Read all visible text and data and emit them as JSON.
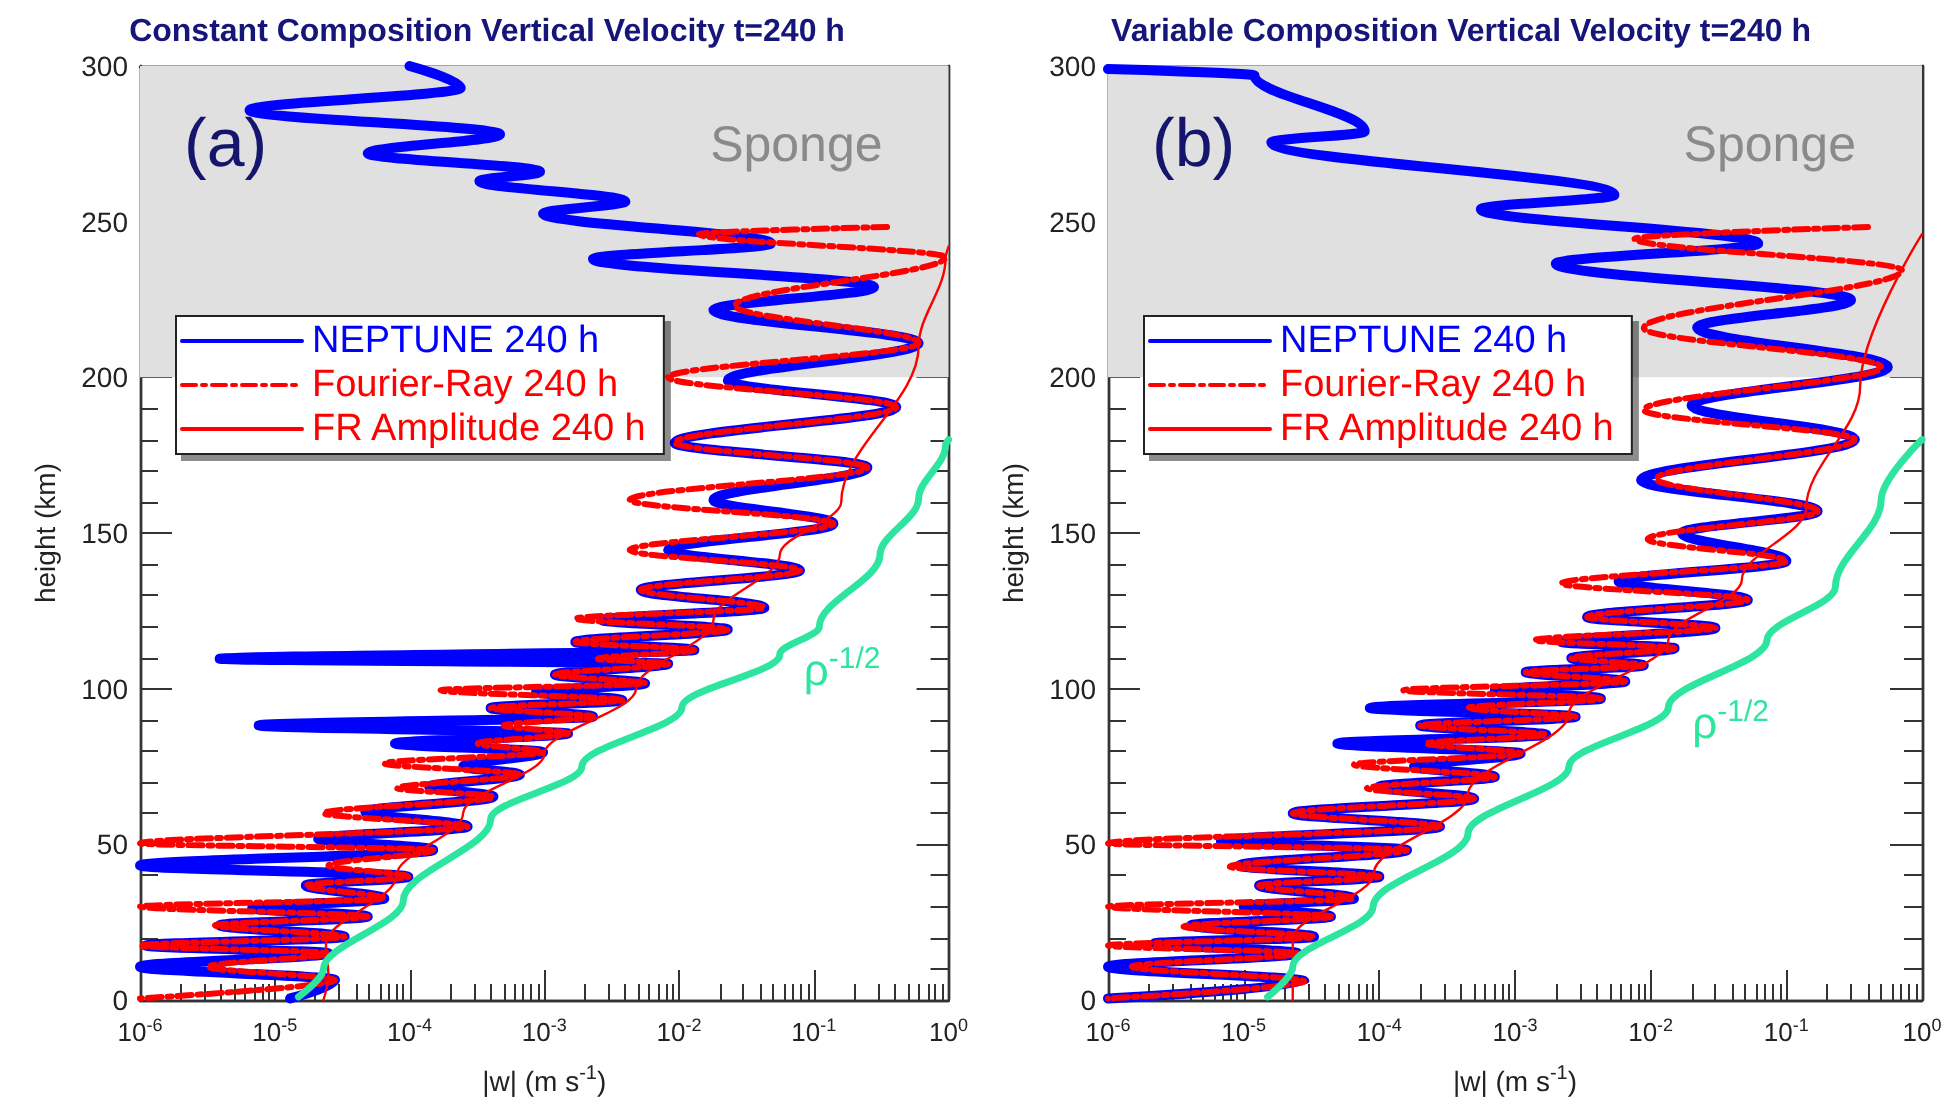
{
  "chart_data": [
    {
      "type": "line",
      "title": "Constant Composition Vertical Velocity t=240 h",
      "xlabel": "|w| (m s$^{-1}$)",
      "ylabel": "height (km)",
      "log": "x",
      "grid": false,
      "marker": "none",
      "legend": "left",
      "xlim": [
        1e-06,
        1
      ],
      "xticks": [
        {
          "value": 1e-06,
          "label": "10$^{-6}$"
        },
        {
          "value": 1e-05,
          "label": "10$^{-5}$"
        },
        {
          "value": 0.0001,
          "label": "10$^{-4}$"
        },
        {
          "value": 0.001,
          "label": "10$^{-3}$"
        },
        {
          "value": 0.01,
          "label": "10$^{-2}$"
        },
        {
          "value": 0.1,
          "label": "10$^{-1}$"
        },
        {
          "value": 1,
          "label": "10$^{0}$"
        }
      ],
      "ylim": [
        0,
        300
      ],
      "yticks": [
        0,
        50,
        100,
        150,
        200,
        250,
        300
      ],
      "bands": [
        {
          "axis": "y",
          "from": 200,
          "to": 300,
          "label": "Sponge",
          "color": "#e0e0e0"
        }
      ],
      "annotations": [
        "(a)",
        "ρ$^{-1/2}$"
      ],
      "series": [
        {
          "name": "NEPTUNE 240 h",
          "color": "#0000ff",
          "x": [
            0.0001,
            0.00024,
            6.5e-06,
            0.00047,
            4.9e-05,
            0.00093,
            0.00033,
            0.004,
            0.00098,
            0.048,
            0.0023,
            0.28,
            0.018,
            0.6,
            0.023,
            0.41,
            0.0093,
            0.25,
            0.018,
            0.14,
            0.0083,
            0.079,
            0.0052,
            0.043,
            0.0027,
            0.023,
            0.0017,
            0.013,
            3.9e-06,
            0.0083,
            0.0012,
            0.0056,
            0.00087,
            0.0038,
            0.0004,
            0.0023,
            7.6e-06,
            0.0015,
            7.8e-05,
            0.00098,
            0.00025,
            0.00066,
            0.00014,
            0.00042,
            4.7e-05,
            0.00027,
            2.1e-05,
            0.00015,
            1e-06,
            9.8e-05,
            1.7e-05,
            6.5e-05,
            6.8e-06,
            4.9e-05,
            3.9e-06,
            3.3e-05,
            1.1e-06,
            2.5e-05,
            1e-06,
            2.8e-05,
            1.3e-05
          ],
          "values": [
            300,
            293,
            285.8,
            278,
            272,
            266,
            263,
            256.5,
            252.6,
            243,
            238,
            229,
            221.6,
            211,
            199,
            190.5,
            179,
            171,
            160.6,
            153,
            144.5,
            138,
            131.7,
            126,
            122,
            119,
            115,
            112.4,
            109.6,
            108,
            104.5,
            101.7,
            99,
            96.3,
            93.8,
            91,
            88.2,
            85.6,
            82.4,
            79.6,
            75,
            72.4,
            68.5,
            65.3,
            60.4,
            55.7,
            51.8,
            48.2,
            43.2,
            39.6,
            36.8,
            32.6,
            29.5,
            26.8,
            24,
            20.3,
            17.5,
            15,
            10.7,
            6.4,
            0.5
          ]
        },
        {
          "name": "Fourier-Ray 240 h",
          "color": "#ff0000",
          "line_style": "dashed",
          "x": [
            0.35,
            0.014,
            0.95,
            0.026,
            0.6,
            0.0083,
            0.41,
            0.0093,
            0.25,
            0.0043,
            0.14,
            0.0043,
            0.079,
            0.0052,
            0.043,
            0.0017,
            0.023,
            0.0017,
            0.013,
            0.0025,
            0.0083,
            0.0012,
            0.0056,
            0.00017,
            0.0038,
            0.0004,
            0.0023,
            0.0005,
            0.0015,
            0.00032,
            0.00098,
            6.5e-05,
            0.00066,
            8.1e-05,
            0.00042,
            2.3e-05,
            0.00027,
            1e-06,
            0.00015,
            2.5e-05,
            9.8e-05,
            1.7e-05,
            6.5e-05,
            1e-06,
            4.9e-05,
            3.6e-06,
            3.3e-05,
            1e-06,
            2.5e-05,
            3.2e-06,
            2.8e-05,
            1e-06
          ],
          "values": [
            248.3,
            246,
            238.6,
            223,
            211,
            200,
            190.5,
            179,
            171,
            160.6,
            153,
            144.5,
            138,
            131.7,
            126,
            122.5,
            119,
            115,
            112.4,
            109.6,
            108,
            104.5,
            101.7,
            99.5,
            96.3,
            93.8,
            91,
            88.2,
            85.6,
            82.4,
            79.6,
            76,
            72.4,
            68,
            65.3,
            60,
            55.7,
            50.3,
            48.2,
            43.2,
            39.6,
            36.8,
            32.6,
            30,
            26.8,
            24,
            20.3,
            17.5,
            15,
            10.7,
            6.4,
            0.5
          ]
        },
        {
          "name": "FR Amplitude 240 h",
          "color": "#ff0000",
          "x": [
            2.3e-05,
            2.5e-05,
            2.4e-05,
            8e-05,
            0.00025,
            0.001,
            0.0048,
            0.018,
            0.056,
            0.16,
            0.6,
            0.95,
            1.0
          ],
          "values": [
            0,
            8,
            18,
            40,
            60,
            79,
            100,
            122,
            143,
            160,
            210,
            238,
            242
          ]
        },
        {
          "color": "#2ee5a0",
          "x": [
            1.5e-05,
            2.3e-05,
            9e-05,
            0.0004,
            0.0019,
            0.0105,
            0.056,
            0.11,
            0.31,
            0.6,
            0.95,
            1.0
          ],
          "values": [
            1,
            10,
            32,
            58,
            75,
            94,
            111,
            120,
            143,
            161,
            178,
            180
          ]
        }
      ]
    },
    {
      "type": "line",
      "title": "Variable Composition Vertical Velocity t=240 h",
      "xlabel": "|w| (m s$^{-1}$)",
      "ylabel": "height (km)",
      "log": "x",
      "grid": false,
      "marker": "none",
      "legend": "left",
      "xlim": [
        1e-06,
        1
      ],
      "xticks": [
        {
          "value": 1e-06,
          "label": "10$^{-6}$"
        },
        {
          "value": 1e-05,
          "label": "10$^{-5}$"
        },
        {
          "value": 0.0001,
          "label": "10$^{-4}$"
        },
        {
          "value": 0.001,
          "label": "10$^{-3}$"
        },
        {
          "value": 0.01,
          "label": "10$^{-2}$"
        },
        {
          "value": 0.1,
          "label": "10$^{-1}$"
        },
        {
          "value": 1,
          "label": "10$^{0}$"
        }
      ],
      "ylim": [
        0,
        300
      ],
      "yticks": [
        0,
        50,
        100,
        150,
        200,
        250,
        300
      ],
      "bands": [
        {
          "axis": "y",
          "from": 200,
          "to": 300,
          "label": "Sponge",
          "color": "#e0e0e0"
        }
      ],
      "annotations": [
        "(b)",
        "ρ$^{-1/2}$"
      ],
      "series": [
        {
          "name": "NEPTUNE 240 h",
          "color": "#0000ff",
          "x": [
            1e-06,
            1.2e-05,
            7.8e-05,
            1.6e-05,
            0.0054,
            0.00056,
            0.062,
            0.002,
            0.3,
            0.022,
            0.56,
            0.02,
            0.32,
            0.0085,
            0.17,
            0.017,
            0.1,
            0.0058,
            0.052,
            0.0034,
            0.03,
            0.0022,
            0.015,
            0.0026,
            0.0089,
            0.0012,
            0.0065,
            0.00071,
            0.0043,
            8.5e-05,
            0.0028,
            0.0002,
            0.0017,
            4.9e-05,
            0.0011,
            0.00018,
            0.00071,
            0.0001,
            0.0005,
            2.3e-05,
            0.00028,
            6.8e-06,
            0.00016,
            9.3e-06,
            0.0001,
            1.3e-05,
            6.5e-05,
            1e-05,
            4.4e-05,
            4.1e-06,
            3.3e-05,
            2.2e-06,
            2.5e-05,
            1e-06,
            2.8e-05,
            1e-06
          ],
          "values": [
            299,
            297,
            279,
            275.5,
            258.6,
            254,
            243,
            236.5,
            224.8,
            216,
            203.3,
            191,
            180,
            167,
            157,
            150,
            141,
            134.4,
            128.5,
            123,
            119.5,
            115,
            113,
            109.8,
            107.5,
            105.3,
            102.3,
            99.5,
            96.8,
            93.8,
            91,
            88.2,
            85.2,
            82.4,
            79.2,
            75,
            71.7,
            68.5,
            64.7,
            60,
            55.7,
            51,
            48.2,
            43.2,
            39.6,
            36.8,
            32.6,
            30,
            26.8,
            24,
            20.3,
            18.2,
            15,
            10.7,
            6,
            0.5
          ]
        },
        {
          "name": "Fourier-Ray 240 h",
          "color": "#ff0000",
          "line_style": "dashed",
          "x": [
            0.4,
            0.0076,
            0.71,
            0.0089,
            0.5,
            0.0089,
            0.32,
            0.011,
            0.17,
            0.0095,
            0.1,
            0.0022,
            0.052,
            0.0034,
            0.03,
            0.0014,
            0.015,
            0.0026,
            0.0089,
            0.0012,
            0.0065,
            0.00015,
            0.0043,
            0.00045,
            0.0028,
            0.0002,
            0.0017,
            0.00022,
            0.0011,
            6.5e-05,
            0.00071,
            8.1e-05,
            0.0005,
            2.3e-05,
            0.00028,
            1e-06,
            0.00016,
            7.9e-06,
            0.0001,
            1.3e-05,
            6.5e-05,
            1e-06,
            4.4e-05,
            3.6e-06,
            3.3e-05,
            1e-06,
            2.5e-05,
            1.5e-06,
            2.8e-05,
            1e-06
          ],
          "values": [
            248.3,
            244.5,
            234.4,
            215.8,
            203.3,
            189.5,
            180,
            167.4,
            157,
            148,
            141,
            133.8,
            128.5,
            123,
            119.5,
            115.6,
            113,
            109.8,
            107.5,
            105.3,
            102.3,
            99.5,
            96.8,
            93.8,
            91,
            88.2,
            85.2,
            82.4,
            79.2,
            75.6,
            71.7,
            68,
            64.7,
            60,
            55.7,
            50.3,
            48.2,
            42.8,
            39.6,
            36.8,
            32.6,
            30,
            26.8,
            23.6,
            20.3,
            17.5,
            15,
            10.7,
            6,
            0.5
          ]
        },
        {
          "name": "FR Amplitude 240 h",
          "color": "#ff0000",
          "x": [
            2.3e-05,
            2.3e-05,
            9.1e-05,
            0.00045,
            0.0025,
            0.0135,
            0.047,
            0.14,
            0.35,
            1.0
          ],
          "values": [
            0,
            19.6,
            40.7,
            66,
            92,
            115.6,
            135,
            158,
            197,
            246
          ]
        },
        {
          "color": "#2ee5a0",
          "x": [
            1.5e-05,
            2.3e-05,
            9e-05,
            0.00045,
            0.0025,
            0.0135,
            0.072,
            0.23,
            0.5,
            1.0
          ],
          "values": [
            1,
            10.7,
            30,
            53.5,
            75,
            94,
            115.6,
            132.7,
            160.6,
            180
          ]
        }
      ]
    }
  ]
}
